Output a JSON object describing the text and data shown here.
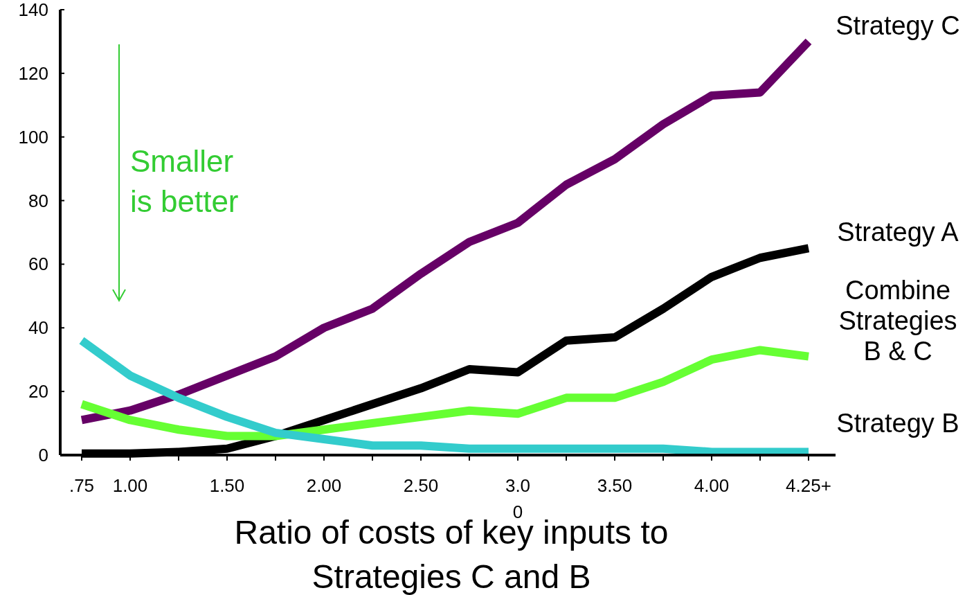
{
  "chart_data": {
    "type": "line",
    "categories": [
      ".75",
      "1.00",
      null,
      "1.50",
      null,
      "2.00",
      null,
      "2.50",
      null,
      "3.0\n0",
      null,
      "3.50",
      null,
      "4.00",
      null,
      "4.25+"
    ],
    "series": [
      {
        "name": "Strategy C",
        "color": "#660066",
        "values": [
          11,
          14,
          19,
          25,
          31,
          40,
          46,
          57,
          67,
          73,
          85,
          93,
          104,
          113,
          114,
          130
        ]
      },
      {
        "name": "Strategy A",
        "color": "#000000",
        "values": [
          0.5,
          0.5,
          1,
          2,
          6,
          11,
          16,
          21,
          27,
          26,
          36,
          37,
          46,
          56,
          62,
          65
        ]
      },
      {
        "name": "Combine\nStrategies\nB & C",
        "color": "#66ff33",
        "values": [
          16,
          11,
          8,
          6,
          6,
          8,
          10,
          12,
          14,
          13,
          18,
          18,
          23,
          30,
          33,
          31
        ]
      },
      {
        "name": "Strategy B",
        "color": "#33cccc",
        "values": [
          36,
          25,
          18,
          12,
          7,
          5,
          3,
          3,
          2,
          2,
          2,
          2,
          2,
          1,
          1,
          1
        ]
      }
    ],
    "ylim": [
      0,
      140
    ],
    "yticks": [
      0,
      20,
      40,
      60,
      80,
      100,
      120,
      140
    ],
    "xlabel": "Ratio of costs of key inputs to\nStrategies C and B",
    "annotations": [
      "Smaller\nis better"
    ],
    "grid": false,
    "marker": "none",
    "line_style": "solid"
  }
}
